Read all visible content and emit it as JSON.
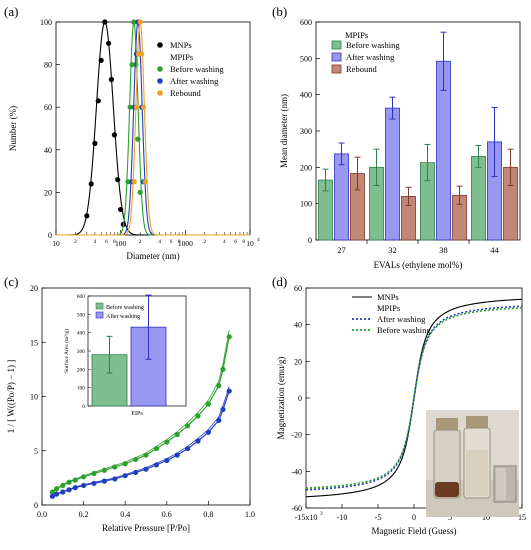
{
  "chart_data": [
    {
      "panel": "(a)",
      "type": "line",
      "xlabel": "Diameter (nm)",
      "ylabel": "Number (%)",
      "xscale": "log",
      "xlim": [
        10,
        10000
      ],
      "ylim": [
        0,
        100
      ],
      "yticks": [
        "0",
        "20",
        "40",
        "60",
        "80",
        "100"
      ],
      "xticks": [
        "10",
        "100",
        "1000",
        "10"
      ],
      "xtick_exponent": "4",
      "minor_labels": [
        "2",
        "4",
        "6",
        "8",
        "2",
        "4",
        "6",
        "8",
        "2",
        "4",
        "6",
        "8"
      ],
      "legend": [
        "MNPs",
        "MPIPs",
        "Before washing",
        "After washing",
        "Rebound"
      ],
      "series": [
        {
          "name": "MNPs",
          "color": "#000000",
          "center": 57,
          "sigma": 0.13,
          "x": [
            30,
            35,
            40,
            45,
            50,
            57,
            65,
            72,
            80,
            90,
            100,
            110
          ],
          "y": [
            9,
            24,
            43,
            63,
            82,
            100,
            90,
            73,
            47,
            26,
            12,
            5
          ]
        },
        {
          "name": "Before washing",
          "color": "#2ca02c",
          "center": 160,
          "sigma": 0.065,
          "x": [
            130,
            140,
            150,
            160,
            172,
            185,
            200
          ],
          "y": [
            25,
            60,
            80,
            100,
            80,
            45,
            20
          ]
        },
        {
          "name": "After washing",
          "color": "#1f3fbf",
          "center": 185,
          "sigma": 0.065,
          "x": [
            150,
            162,
            175,
            185,
            198,
            212,
            225
          ],
          "y": [
            25,
            60,
            85,
            100,
            85,
            60,
            25
          ]
        },
        {
          "name": "Rebound",
          "color": "#f0a020",
          "center": 200,
          "sigma": 0.065,
          "x": [
            162,
            175,
            188,
            200,
            212,
            225,
            240
          ],
          "y": [
            25,
            60,
            85,
            100,
            85,
            60,
            25
          ]
        }
      ]
    },
    {
      "panel": "(b)",
      "type": "bar",
      "xlabel": "EVALs (ethylene mol%)",
      "ylabel": "Mean diameter (nm)",
      "ylim": [
        0,
        600
      ],
      "yticks": [
        "0",
        "100",
        "200",
        "300",
        "400",
        "500",
        "600"
      ],
      "categories": [
        "27",
        "32",
        "38",
        "44"
      ],
      "legend_title": "MPIPs",
      "series": [
        {
          "name": "Before washing",
          "color": "#7fbf8f",
          "edge": "#2f7f4f",
          "values": [
            165,
            200,
            213,
            230
          ],
          "errors": [
            30,
            50,
            50,
            30
          ]
        },
        {
          "name": "After washing",
          "color": "#9898f0",
          "edge": "#3030c0",
          "values": [
            237,
            363,
            492,
            270
          ],
          "errors": [
            30,
            30,
            80,
            95
          ]
        },
        {
          "name": "Rebound",
          "color": "#c08878",
          "edge": "#803828",
          "values": [
            183,
            120,
            123,
            200
          ],
          "errors": [
            45,
            25,
            25,
            50
          ]
        }
      ]
    },
    {
      "panel": "(c)",
      "type": "line",
      "xlabel": "Relative Pressure [P/Po]",
      "ylabel": "1 / [ W((Po/P) − 1) ]",
      "xlim": [
        0.0,
        1.0
      ],
      "ylim": [
        0,
        20
      ],
      "xticks": [
        "0.0",
        "0.2",
        "0.4",
        "0.6",
        "0.8",
        "1.0"
      ],
      "yticks": [
        "0",
        "5",
        "10",
        "15",
        "20"
      ],
      "series": [
        {
          "name": "Before washing",
          "color": "#2ca02c",
          "x": [
            0.05,
            0.07,
            0.1,
            0.13,
            0.16,
            0.2,
            0.25,
            0.3,
            0.35,
            0.4,
            0.45,
            0.5,
            0.55,
            0.6,
            0.65,
            0.7,
            0.75,
            0.8,
            0.85,
            0.87,
            0.9
          ],
          "y": [
            1.2,
            1.5,
            1.8,
            2.1,
            2.3,
            2.6,
            2.9,
            3.2,
            3.5,
            3.8,
            4.2,
            4.6,
            5.2,
            5.8,
            6.5,
            7.3,
            8.2,
            9.3,
            11.0,
            12.5,
            15.5
          ]
        },
        {
          "name": "After washing",
          "color": "#1f3fbf",
          "x": [
            0.05,
            0.07,
            0.1,
            0.13,
            0.16,
            0.2,
            0.25,
            0.3,
            0.35,
            0.4,
            0.45,
            0.5,
            0.55,
            0.6,
            0.65,
            0.7,
            0.75,
            0.8,
            0.85,
            0.87,
            0.9
          ],
          "y": [
            0.8,
            1.0,
            1.2,
            1.4,
            1.6,
            1.8,
            2.0,
            2.2,
            2.4,
            2.7,
            3.0,
            3.3,
            3.7,
            4.1,
            4.6,
            5.2,
            5.9,
            6.7,
            7.8,
            8.8,
            10.5
          ]
        }
      ],
      "inset": {
        "type": "bar",
        "xlabel": "EIPs",
        "ylabel": "Surface Area (m²/g)",
        "ylim": [
          0,
          600
        ],
        "yticks": [
          "0",
          "100",
          "200",
          "300",
          "400",
          "500",
          "600"
        ],
        "series": [
          {
            "name": "Before washing",
            "color": "#7fbf8f",
            "edge": "#2f7f4f",
            "value": 280,
            "error": 100
          },
          {
            "name": "After washing",
            "color": "#9898f0",
            "edge": "#3030c0",
            "value": 430,
            "error": 175
          }
        ]
      }
    },
    {
      "panel": "(d)",
      "type": "line",
      "xlabel": "Magnetic Field (Guess)",
      "ylabel": "Magnetization (emu/g)",
      "xlim": [
        -15000,
        15000
      ],
      "ylim": [
        -60,
        60
      ],
      "xticks": [
        "-15x10",
        "-10",
        "-5",
        "0",
        "5",
        "10",
        "15"
      ],
      "xtick_exponent": "3",
      "yticks": [
        "-60",
        "-40",
        "-20",
        "0",
        "20",
        "40",
        "60"
      ],
      "series": [
        {
          "name": "MNPs",
          "color": "#000000",
          "style": "solid",
          "ms": 57
        },
        {
          "name": "MPIPs",
          "color": "#000000",
          "style": "none",
          "ms": 0
        },
        {
          "name": "After washing",
          "color": "#1f3fbf",
          "style": "dotted",
          "ms": 53
        },
        {
          "name": "Before washing",
          "color": "#2ca02c",
          "style": "dotted",
          "ms": 52
        }
      ]
    }
  ],
  "panels": {
    "a": "(a)",
    "b": "(b)",
    "c": "(c)",
    "d": "(d)"
  }
}
